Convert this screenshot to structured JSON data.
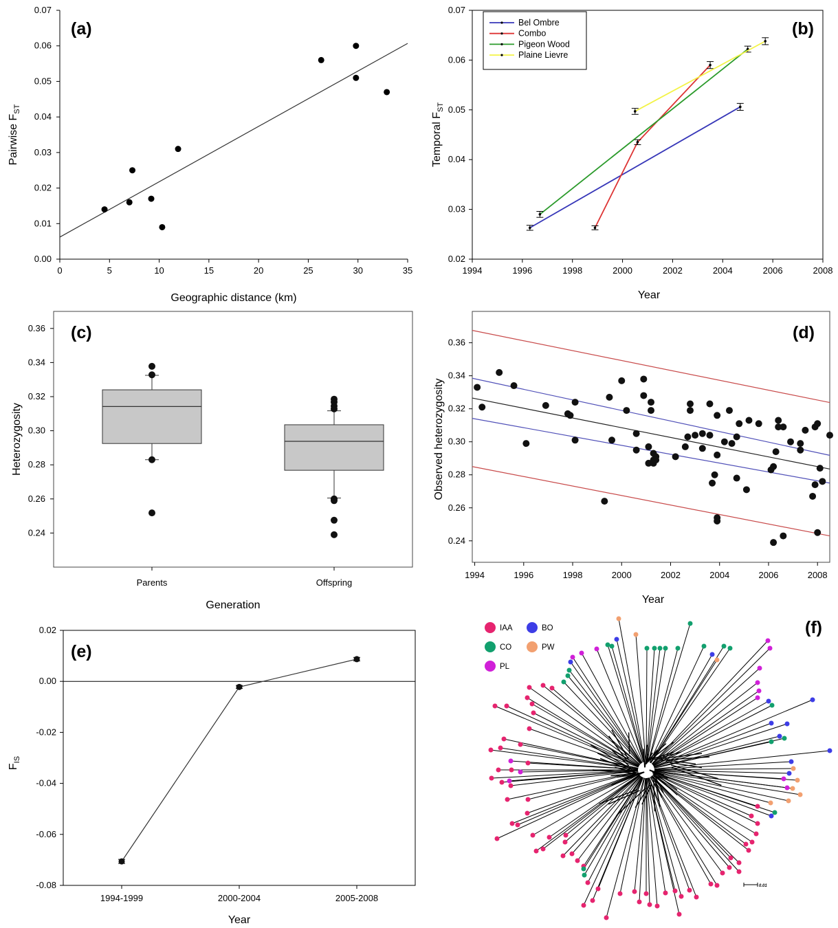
{
  "chart_data": [
    {
      "panel": "(a)",
      "type": "scatter",
      "xlabel": "Geographic distance (km)",
      "ylabel": "Pairwise F",
      "ylabel_sub": "ST",
      "xlim": [
        0,
        35
      ],
      "ylim": [
        0,
        0.07
      ],
      "xticks": [
        "0",
        "5",
        "10",
        "15",
        "20",
        "25",
        "30",
        "35"
      ],
      "yticks": [
        "0.00",
        "0.01",
        "0.02",
        "0.03",
        "0.04",
        "0.05",
        "0.06",
        "0.07"
      ],
      "points": [
        [
          4.5,
          0.014
        ],
        [
          7.0,
          0.016
        ],
        [
          7.3,
          0.025
        ],
        [
          9.2,
          0.017
        ],
        [
          10.3,
          0.009
        ],
        [
          11.9,
          0.031
        ],
        [
          26.3,
          0.056
        ],
        [
          29.8,
          0.06
        ],
        [
          29.8,
          0.051
        ],
        [
          32.9,
          0.047
        ]
      ],
      "fit_line": {
        "x": [
          0,
          35
        ],
        "y": [
          0.0062,
          0.0607
        ]
      }
    },
    {
      "panel": "(b)",
      "type": "line",
      "xlabel": "Year",
      "ylabel": "Temporal F",
      "ylabel_sub": "ST",
      "xlim": [
        1994,
        2008
      ],
      "ylim": [
        0.02,
        0.07
      ],
      "xticks": [
        "1994",
        "1996",
        "1998",
        "2000",
        "2002",
        "2004",
        "2006",
        "2008"
      ],
      "yticks": [
        "0.02",
        "0.03",
        "0.04",
        "0.05",
        "0.06",
        "0.07"
      ],
      "legend_position": "top-left",
      "series": [
        {
          "name": "Bel Ombre",
          "color": "#3636b8",
          "x": [
            1996.3,
            2004.7
          ],
          "y": [
            0.0263,
            0.0506
          ],
          "err": [
            0.0005,
            0.0007
          ]
        },
        {
          "name": "Combo",
          "color": "#dd3333",
          "x": [
            1998.9,
            2000.6,
            2003.5
          ],
          "y": [
            0.0263,
            0.0435,
            0.059
          ],
          "err": [
            0.0004,
            0.0005,
            0.0007
          ]
        },
        {
          "name": "Pigeon Wood",
          "color": "#2a9a2a",
          "x": [
            1996.7,
            2005.0
          ],
          "y": [
            0.029,
            0.0622
          ],
          "err": [
            0.0006,
            0.0006
          ]
        },
        {
          "name": "Plaine Lievre",
          "color": "#f3f346",
          "x": [
            2000.5,
            2005.7
          ],
          "y": [
            0.0497,
            0.0638
          ],
          "err": [
            0.0006,
            0.0007
          ]
        }
      ]
    },
    {
      "panel": "(c)",
      "type": "box",
      "xlabel": "Generation",
      "ylabel": "Heterozygosity",
      "ylim": [
        0.22,
        0.37
      ],
      "yticks": [
        "0.24",
        "0.26",
        "0.28",
        "0.30",
        "0.32",
        "0.34",
        "0.36"
      ],
      "categories": [
        "Parents",
        "Offspring"
      ],
      "boxes": [
        {
          "q1": 0.2925,
          "median": 0.3142,
          "q3": 0.324,
          "whisker_low": 0.283,
          "whisker_high": 0.3325,
          "outliers": [
            0.3378,
            0.3328,
            0.283,
            0.2518
          ]
        },
        {
          "q1": 0.2768,
          "median": 0.2938,
          "q3": 0.3035,
          "whisker_low": 0.2605,
          "whisker_high": 0.3117,
          "outliers": [
            0.3185,
            0.3168,
            0.3145,
            0.3128,
            0.26,
            0.259,
            0.2475,
            0.239
          ]
        }
      ]
    },
    {
      "panel": "(d)",
      "type": "scatter",
      "xlabel": "Year",
      "ylabel": "Observed heterozygosity",
      "xlim": [
        1993.9,
        2008.5
      ],
      "ylim": [
        0.227,
        0.379
      ],
      "xticks": [
        "1994",
        "1996",
        "1998",
        "2000",
        "2002",
        "2004",
        "2006",
        "2008"
      ],
      "yticks": [
        "0.24",
        "0.26",
        "0.28",
        "0.30",
        "0.32",
        "0.34",
        "0.36"
      ],
      "points": [
        [
          1994.1,
          0.333
        ],
        [
          1994.3,
          0.321
        ],
        [
          1995.0,
          0.342
        ],
        [
          1995.6,
          0.334
        ],
        [
          1996.1,
          0.299
        ],
        [
          1996.9,
          0.322
        ],
        [
          1997.8,
          0.317
        ],
        [
          1997.9,
          0.316
        ],
        [
          1998.1,
          0.324
        ],
        [
          1998.1,
          0.301
        ],
        [
          1999.3,
          0.264
        ],
        [
          1999.5,
          0.327
        ],
        [
          1999.6,
          0.301
        ],
        [
          2000.0,
          0.337
        ],
        [
          2000.2,
          0.319
        ],
        [
          2000.6,
          0.305
        ],
        [
          2000.6,
          0.295
        ],
        [
          2000.9,
          0.338
        ],
        [
          2000.9,
          0.328
        ],
        [
          2001.1,
          0.287
        ],
        [
          2001.1,
          0.297
        ],
        [
          2001.2,
          0.324
        ],
        [
          2001.2,
          0.319
        ],
        [
          2001.3,
          0.289
        ],
        [
          2001.3,
          0.293
        ],
        [
          2001.4,
          0.291
        ],
        [
          2001.4,
          0.289
        ],
        [
          2001.3,
          0.287
        ],
        [
          2002.2,
          0.291
        ],
        [
          2002.6,
          0.297
        ],
        [
          2002.7,
          0.303
        ],
        [
          2002.8,
          0.323
        ],
        [
          2002.8,
          0.319
        ],
        [
          2003.0,
          0.304
        ],
        [
          2003.3,
          0.305
        ],
        [
          2003.3,
          0.296
        ],
        [
          2003.6,
          0.323
        ],
        [
          2003.6,
          0.304
        ],
        [
          2003.7,
          0.275
        ],
        [
          2003.8,
          0.28
        ],
        [
          2003.9,
          0.254
        ],
        [
          2003.9,
          0.252
        ],
        [
          2003.9,
          0.316
        ],
        [
          2003.9,
          0.292
        ],
        [
          2004.2,
          0.3
        ],
        [
          2004.4,
          0.319
        ],
        [
          2004.5,
          0.299
        ],
        [
          2004.7,
          0.303
        ],
        [
          2004.7,
          0.278
        ],
        [
          2004.8,
          0.311
        ],
        [
          2005.1,
          0.271
        ],
        [
          2005.2,
          0.313
        ],
        [
          2005.6,
          0.311
        ],
        [
          2006.1,
          0.283
        ],
        [
          2006.2,
          0.239
        ],
        [
          2006.2,
          0.285
        ],
        [
          2006.3,
          0.294
        ],
        [
          2006.4,
          0.313
        ],
        [
          2006.4,
          0.309
        ],
        [
          2006.6,
          0.309
        ],
        [
          2006.6,
          0.243
        ],
        [
          2006.9,
          0.3
        ],
        [
          2007.3,
          0.299
        ],
        [
          2007.3,
          0.295
        ],
        [
          2007.5,
          0.307
        ],
        [
          2007.8,
          0.267
        ],
        [
          2007.9,
          0.274
        ],
        [
          2007.9,
          0.309
        ],
        [
          2008.0,
          0.311
        ],
        [
          2008.0,
          0.245
        ],
        [
          2008.1,
          0.284
        ],
        [
          2008.2,
          0.276
        ],
        [
          2008.5,
          0.304
        ]
      ],
      "lines": [
        {
          "role": "fit",
          "color": "#222222",
          "x": [
            1993.9,
            2008.5
          ],
          "y": [
            0.3265,
            0.2835
          ]
        },
        {
          "role": "confidence band upper",
          "color": "#5050b8",
          "x": [
            1993.9,
            2008.5
          ],
          "y": [
            0.3385,
            0.2918
          ]
        },
        {
          "role": "confidence band lower",
          "color": "#5050b8",
          "x": [
            1993.9,
            2008.5
          ],
          "y": [
            0.3142,
            0.275
          ]
        },
        {
          "role": "prediction band upper",
          "color": "#c84a4a",
          "x": [
            1993.9,
            2008.5
          ],
          "y": [
            0.3675,
            0.3238
          ]
        },
        {
          "role": "prediction band lower",
          "color": "#c84a4a",
          "x": [
            1993.9,
            2008.5
          ],
          "y": [
            0.285,
            0.243
          ]
        }
      ]
    },
    {
      "panel": "(e)",
      "type": "line",
      "xlabel": "Year",
      "ylabel": "F",
      "ylabel_sub": "IS",
      "ylim": [
        -0.08,
        0.02
      ],
      "yticks": [
        "-0.08",
        "-0.06",
        "-0.04",
        "-0.02",
        "0.00",
        "0.02"
      ],
      "categories": [
        "1994-1999",
        "2000-2004",
        "2005-2008"
      ],
      "values": [
        -0.0706,
        -0.0022,
        0.0087
      ],
      "err": [
        0.0008,
        0.0006,
        0.0007
      ],
      "reference_line": 0
    },
    {
      "panel": "(f)",
      "type": "tree",
      "legend": [
        {
          "name": "IAA",
          "color": "#e6246f"
        },
        {
          "name": "BO",
          "color": "#3d3de6"
        },
        {
          "name": "CO",
          "color": "#12a06e"
        },
        {
          "name": "PW",
          "color": "#f2a070"
        },
        {
          "name": "PL",
          "color": "#d020d8"
        }
      ],
      "scale_bar_label": "0.01"
    }
  ]
}
